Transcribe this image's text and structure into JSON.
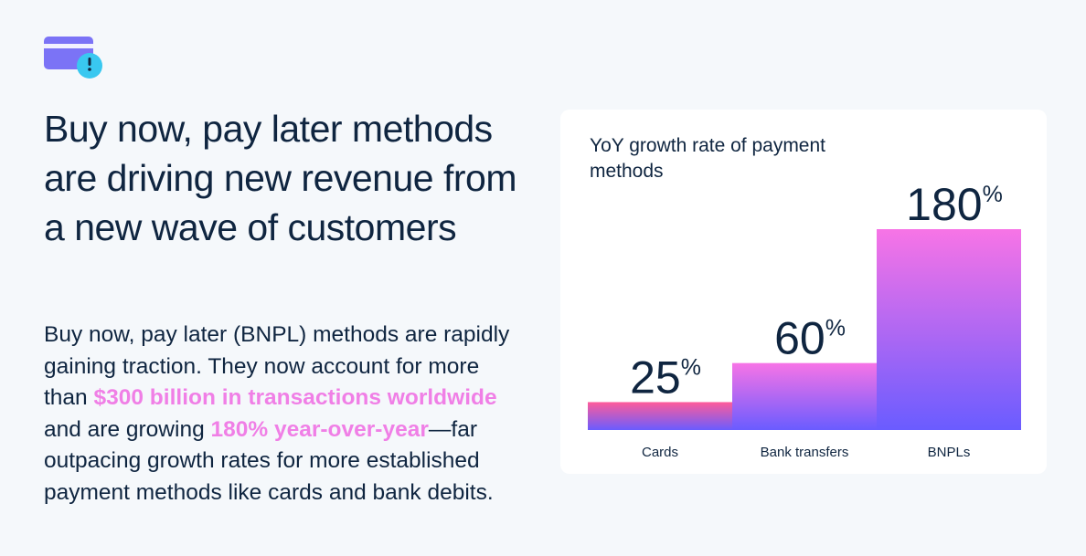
{
  "icon": "card-clock-icon",
  "headline": "Buy now, pay later methods are driving new revenue from a new wave of customers",
  "body": {
    "part1": "Buy now, pay later (BNPL) methods are rapidly gaining traction. They now account for more than ",
    "highlight1": "$300 billion in transactions worldwide",
    "part2": " and are growing ",
    "highlight2": "180% year-over-year",
    "part3": "—far outpacing growth rates for more established payment methods like cards and bank debits."
  },
  "colors": {
    "accent_pink": "#f07fe6",
    "text_navy": "#0f2540",
    "bar_top_pink": "#f774e6",
    "bar_bottom_purple": "#6a5cff",
    "cards_top": "#ff5c9a"
  },
  "chart_data": {
    "type": "bar",
    "title": "YoY growth rate of payment methods",
    "categories": [
      "Cards",
      "Bank transfers",
      "BNPLs"
    ],
    "values": [
      25,
      60,
      180
    ],
    "value_labels": [
      "25",
      "60",
      "180"
    ],
    "unit": "%",
    "ylim": [
      0,
      200
    ],
    "grid": false,
    "legend": "none"
  }
}
